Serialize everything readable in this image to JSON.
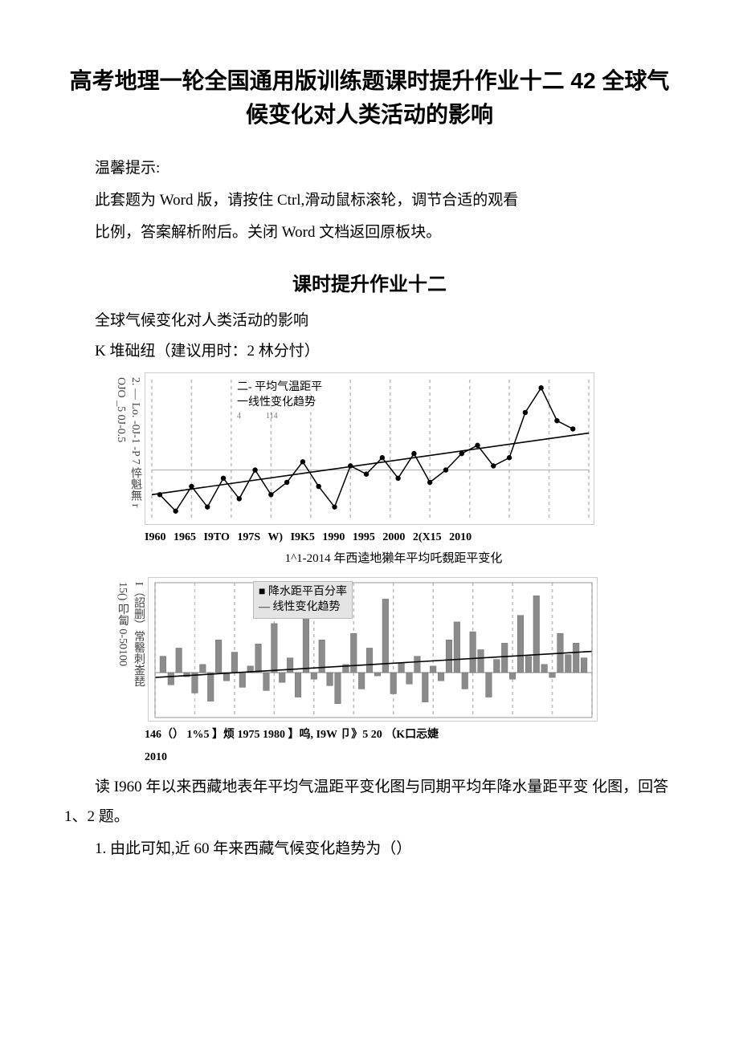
{
  "title": "高考地理一轮全国通用版训练题课时提升作业十二 42 全球气候变化对人类活动的影响",
  "tip_label": "温馨提示:",
  "tip_line1": "此套题为 Word 版，请按住 Ctrl,滑动鼠标滚轮，调节合适的观看",
  "tip_line2": "比例，答案解析附后。关闭 Word 文档返回原板块。",
  "subtitle": "课时提升作业十二",
  "section_line1": "全球气候变化对人类活动的影响",
  "section_line2": "K 堆础纽（建议用时：2 林分忖）",
  "chart1": {
    "type": "line",
    "yaxis_text": "OJO _5 0J-0.5\n2. — Lo. -0J-1 -P 7 悴魁無 r",
    "legend_line1": "二- 平均气温距平",
    "legend_line2": "一线性变化趋势",
    "tiny_a": "4",
    "tiny_b": "114",
    "watermark": "",
    "xlim": [
      1960,
      2015
    ],
    "ylim": [
      -1.2,
      2.2
    ],
    "years": [
      1961,
      1963,
      1965,
      1967,
      1969,
      1971,
      1973,
      1975,
      1977,
      1979,
      1981,
      1983,
      1985,
      1987,
      1989,
      1991,
      1993,
      1995,
      1997,
      1999,
      2001,
      2003,
      2005,
      2007,
      2009,
      2011,
      2013
    ],
    "values": [
      -0.6,
      -1.0,
      -0.4,
      -0.9,
      -0.2,
      -0.7,
      0.0,
      -0.6,
      -0.3,
      0.2,
      -0.4,
      -0.9,
      0.1,
      -0.1,
      0.3,
      -0.2,
      0.4,
      -0.3,
      0.0,
      0.4,
      0.6,
      0.1,
      0.3,
      1.4,
      2.0,
      1.2,
      1.0
    ],
    "trend_y1": -0.6,
    "trend_y2": 0.9,
    "grid_x": [
      1960,
      1965,
      1970,
      1975,
      1980,
      1985,
      1990,
      1995,
      2000,
      2005,
      2010,
      2015
    ],
    "line_color": "#000000",
    "point_color": "#000000",
    "grid_color": "#bcbcbc",
    "background_color": "#ffffff",
    "x_ticks_label": "I960 1965 I9TO 197S W) I9K5 1990 1995 2000 2(X15 2010",
    "caption": "1^1-2014 年西逵地獭年平均吒覣距平变化"
  },
  "chart2": {
    "type": "bar",
    "yaxis_text": "15() 叩匐 0-50100\nI（詔删）常罊刺崟琵",
    "legend_line1": "降水距平百分率",
    "legend_line2": "线性变化趋势",
    "xlim": [
      1960,
      2015
    ],
    "ylim": [
      -55,
      110
    ],
    "years": [
      1961,
      1962,
      1963,
      1964,
      1965,
      1966,
      1967,
      1968,
      1969,
      1970,
      1971,
      1972,
      1973,
      1974,
      1975,
      1976,
      1977,
      1978,
      1979,
      1980,
      1981,
      1982,
      1983,
      1984,
      1985,
      1986,
      1987,
      1988,
      1989,
      1990,
      1991,
      1992,
      1993,
      1994,
      1995,
      1996,
      1997,
      1998,
      1999,
      2000,
      2001,
      2002,
      2003,
      2004,
      2005,
      2006,
      2007,
      2008,
      2009,
      2010,
      2011,
      2012,
      2013,
      2014
    ],
    "values": [
      20,
      -15,
      30,
      -5,
      -25,
      10,
      -35,
      40,
      -10,
      25,
      -18,
      8,
      35,
      -22,
      60,
      -12,
      18,
      -30,
      70,
      -8,
      40,
      -16,
      -38,
      10,
      48,
      -20,
      30,
      -4,
      90,
      -26,
      12,
      -14,
      20,
      -36,
      8,
      -10,
      40,
      62,
      -20,
      50,
      28,
      -30,
      16,
      36,
      -8,
      70,
      20,
      94,
      10,
      -6,
      48,
      22,
      36,
      18
    ],
    "trend_y1": -6,
    "trend_y2": 26,
    "grid_x": [
      1960,
      1965,
      1970,
      1975,
      1980,
      1985,
      1990,
      1995,
      2000,
      2005,
      2010,
      2015
    ],
    "bar_color": "#8b8b8b",
    "grid_color": "#bcbcbc",
    "background_color": "#ffffff",
    "x_ticks_label_l1": "146（） 1%5 】烦 1975 1980 】呜, I9W 卩》5 20 （K口忈婕",
    "x_ticks_label_l2": "2010"
  },
  "q_intro": "读 I960 年以来西藏地表年平均气温距平变化图与同期平均年降水量距平变 化图，回答 1、2 题。",
  "q1": "1. 由此可知,近 60 年来西藏气候变化趋势为（）"
}
